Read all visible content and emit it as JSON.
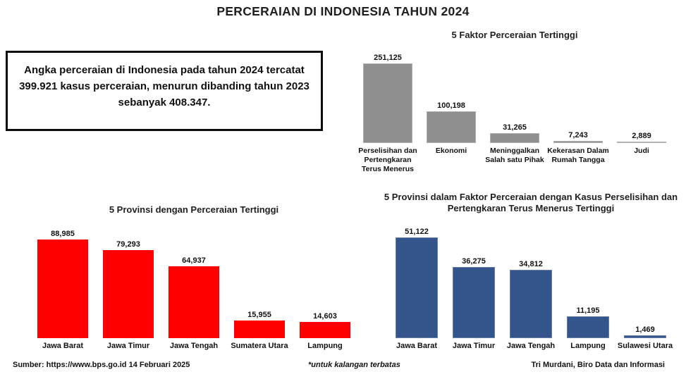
{
  "page_title": "PERCERAIAN DI INDONESIA TAHUN 2024",
  "summary_box": {
    "text": "Angka perceraian di Indonesia  pada tahun 2024 tercatat\n399.921  kasus perceraian, menurun  dibanding tahun 2023\nsebanyak 408.347."
  },
  "chart_data": [
    {
      "type": "bar",
      "title": "5 Faktor Perceraian Tertinggi",
      "categories": [
        "Perselisihan dan Pertengkaran Terus Menerus",
        "Ekonomi",
        "Meninggalkan Salah satu Pihak",
        "Kekerasan Dalam Rumah Tangga",
        "Judi"
      ],
      "values": [
        251125,
        100198,
        31265,
        7243,
        2889
      ],
      "value_labels": [
        "251,125",
        "100,198",
        "31,265",
        "7,243",
        "2,889"
      ],
      "bar_color": "#8F8F8F",
      "xlabel": "",
      "ylabel": "",
      "ylim": [
        0,
        260000
      ],
      "grid": false,
      "legend": "none"
    },
    {
      "type": "bar",
      "title": "5 Provinsi dengan Perceraian Tertinggi",
      "categories": [
        "Jawa Barat",
        "Jawa Timur",
        "Jawa Tengah",
        "Sumatera Utara",
        "Lampung"
      ],
      "values": [
        88985,
        79293,
        64937,
        15955,
        14603
      ],
      "value_labels": [
        "88,985",
        "79,293",
        "64,937",
        "15,955",
        "14,603"
      ],
      "bar_color": "#FF0000",
      "xlabel": "",
      "ylabel": "",
      "ylim": [
        0,
        92000
      ],
      "grid": false,
      "legend": "none"
    },
    {
      "type": "bar",
      "title": "5 Provinsi dalam Faktor Perceraian dengan Kasus Perselisihan dan Pertengkaran Terus Menerus Tertinggi",
      "categories": [
        "Jawa Barat",
        "Jawa Timur",
        "Jawa Tengah",
        "Lampung",
        "Sulawesi Utara"
      ],
      "values": [
        51122,
        36275,
        34812,
        11195,
        1469
      ],
      "value_labels": [
        "51,122",
        "36,275",
        "34,812",
        "11,195",
        "1,469"
      ],
      "bar_color": "#34558B",
      "xlabel": "",
      "ylabel": "",
      "ylim": [
        0,
        53000
      ],
      "grid": false,
      "legend": "none"
    }
  ],
  "footer": {
    "source": "Sumber: https://www.bps.go.id  14 Februari 2025",
    "note": "*untuk kalangan terbatas",
    "credit": "Tri Murdani, Biro Data dan Informasi"
  }
}
